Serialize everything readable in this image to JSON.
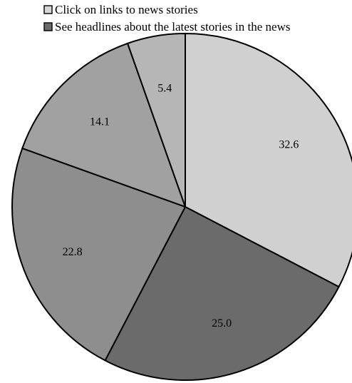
{
  "chart_data": {
    "type": "pie",
    "legend": [
      {
        "label": "Click on links to news stories",
        "color": "#d6d6d6"
      },
      {
        "label": "See headlines about the latest stories in the news",
        "color": "#6b6b6b"
      }
    ],
    "slices": [
      {
        "value": 32.6,
        "label": "32.6",
        "color": "#d0d0d0"
      },
      {
        "value": 25.0,
        "label": "25.0",
        "color": "#6b6b6b"
      },
      {
        "value": 22.8,
        "label": "22.8",
        "color": "#8e8e8e"
      },
      {
        "value": 14.1,
        "label": "14.1",
        "color": "#a1a1a1"
      },
      {
        "value": 5.4,
        "label": "5.4",
        "color": "#b6b6b6"
      }
    ],
    "start_angle": "12 o'clock",
    "direction": "clockwise",
    "legend_placement": "top"
  }
}
